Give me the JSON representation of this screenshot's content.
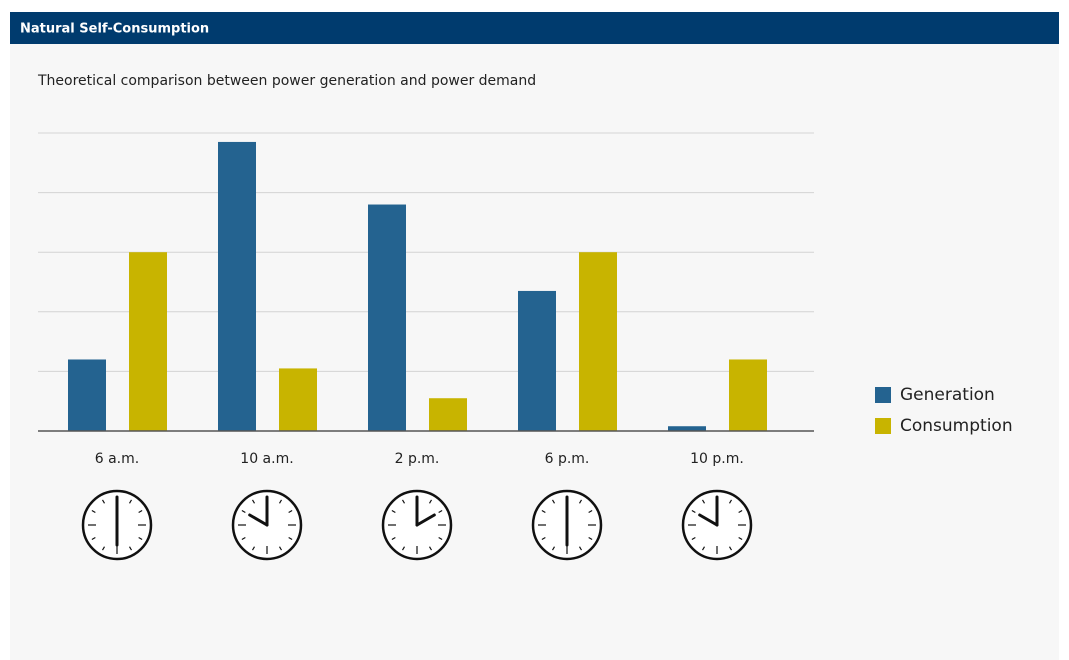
{
  "header": {
    "title": "Natural Self-Consumption"
  },
  "chart_data": {
    "type": "bar",
    "subtitle": "Theoretical comparison between power generation and power demand",
    "categories": [
      "6 a.m.",
      "10 a.m.",
      "2 p.m.",
      "6 p.m.",
      "10 p.m."
    ],
    "series": [
      {
        "name": "Generation",
        "color": "#246390",
        "values": [
          1.2,
          4.85,
          3.8,
          2.35,
          0.08
        ]
      },
      {
        "name": "Consumption",
        "color": "#c8b400",
        "values": [
          3.0,
          1.05,
          0.55,
          3.0,
          1.2
        ]
      }
    ],
    "ylim": [
      0,
      5
    ],
    "yticks": [
      0,
      1,
      2,
      3,
      4,
      5
    ],
    "grid": true,
    "legend": "right"
  }
}
